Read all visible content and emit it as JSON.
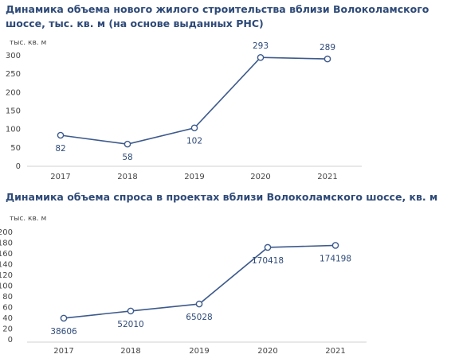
{
  "chart_data": [
    {
      "type": "line",
      "title": "Динамика объема нового жилого строительства вблизи Волоколамского шоссе, тыс. кв. м (на основе выданных РНС)",
      "ylabel": "тыс. кв. м",
      "xlabel": "",
      "categories": [
        "2017",
        "2018",
        "2019",
        "2020",
        "2021"
      ],
      "values": [
        82,
        58,
        102,
        293,
        289
      ],
      "data_labels": [
        "82",
        "58",
        "102",
        "293",
        "289"
      ],
      "ylim": [
        0,
        300
      ],
      "yticks": [
        "0",
        "50",
        "100",
        "150",
        "200",
        "250",
        "300"
      ],
      "grid": false,
      "color": "#3d5a8c"
    },
    {
      "type": "line",
      "title": "Динамика объема спроса в проектах вблизи Волоколамского шоссе, кв. м",
      "ylabel": "тыс. кв. м",
      "xlabel": "",
      "categories": [
        "2017",
        "2018",
        "2019",
        "2020",
        "2021"
      ],
      "values": [
        38606,
        52010,
        65028,
        170418,
        174198
      ],
      "data_labels": [
        "38606",
        "52010",
        "65028",
        "170418",
        "174198"
      ],
      "ylim": [
        0,
        200
      ],
      "yticks": [
        "0",
        "20",
        "40",
        "60",
        "80",
        "100",
        "120",
        "140",
        "160",
        "180",
        "200"
      ],
      "grid": false,
      "color": "#3d5a8c"
    }
  ]
}
